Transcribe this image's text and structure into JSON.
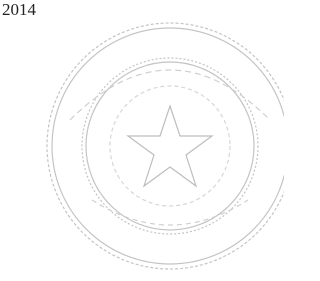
{
  "header": {
    "year": "2014"
  }
}
